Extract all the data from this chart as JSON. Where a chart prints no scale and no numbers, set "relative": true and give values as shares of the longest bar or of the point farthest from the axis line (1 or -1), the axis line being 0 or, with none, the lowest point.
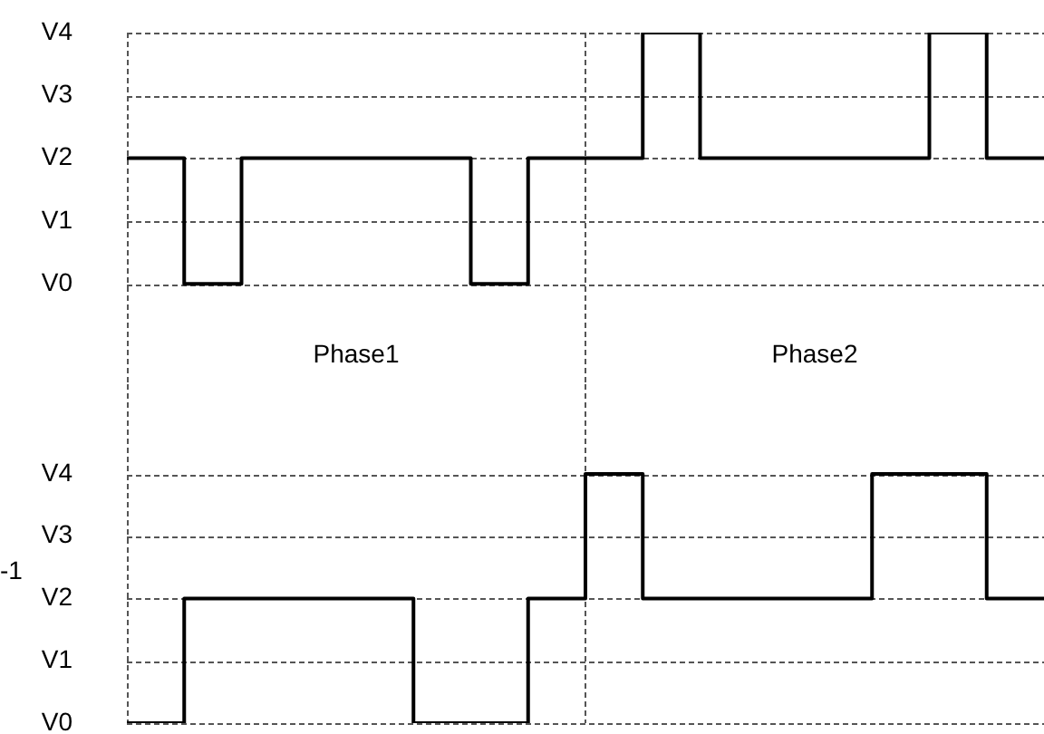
{
  "chart_data": [
    {
      "type": "step",
      "relative": true,
      "categories": [
        null,
        null,
        null,
        null,
        null,
        null,
        null,
        null,
        null,
        null,
        null,
        null,
        null,
        null,
        null,
        null,
        null
      ],
      "series": [
        {
          "color": "#000000",
          "values": [
            0.5,
            0,
            0.5,
            0.5,
            0.5,
            0.5,
            0,
            0.5,
            0.5,
            1,
            0.5,
            0.5,
            0.5,
            0.5,
            1,
            0.5,
            0.5
          ]
        }
      ],
      "grid": "y",
      "legend": false,
      "annotations": [
        "V4",
        "V3",
        "V2",
        "V1",
        "V0",
        "Phase1",
        "Phase2"
      ]
    },
    {
      "type": "step",
      "relative": true,
      "categories": [
        null,
        null,
        null,
        null,
        null,
        null,
        null,
        null,
        null,
        null,
        null,
        null,
        null,
        null,
        null,
        null,
        null
      ],
      "series": [
        {
          "color": "#000000",
          "values": [
            0,
            0.5,
            0.5,
            0.5,
            0.5,
            0,
            0,
            0.5,
            1,
            0.5,
            0.5,
            0.5,
            0.5,
            1,
            1,
            0.5,
            0.5
          ]
        }
      ],
      "ylabel": "-1",
      "grid": "y",
      "legend": false,
      "annotations": [
        "V4",
        "V3",
        "V2",
        "V1",
        "V0"
      ]
    }
  ]
}
